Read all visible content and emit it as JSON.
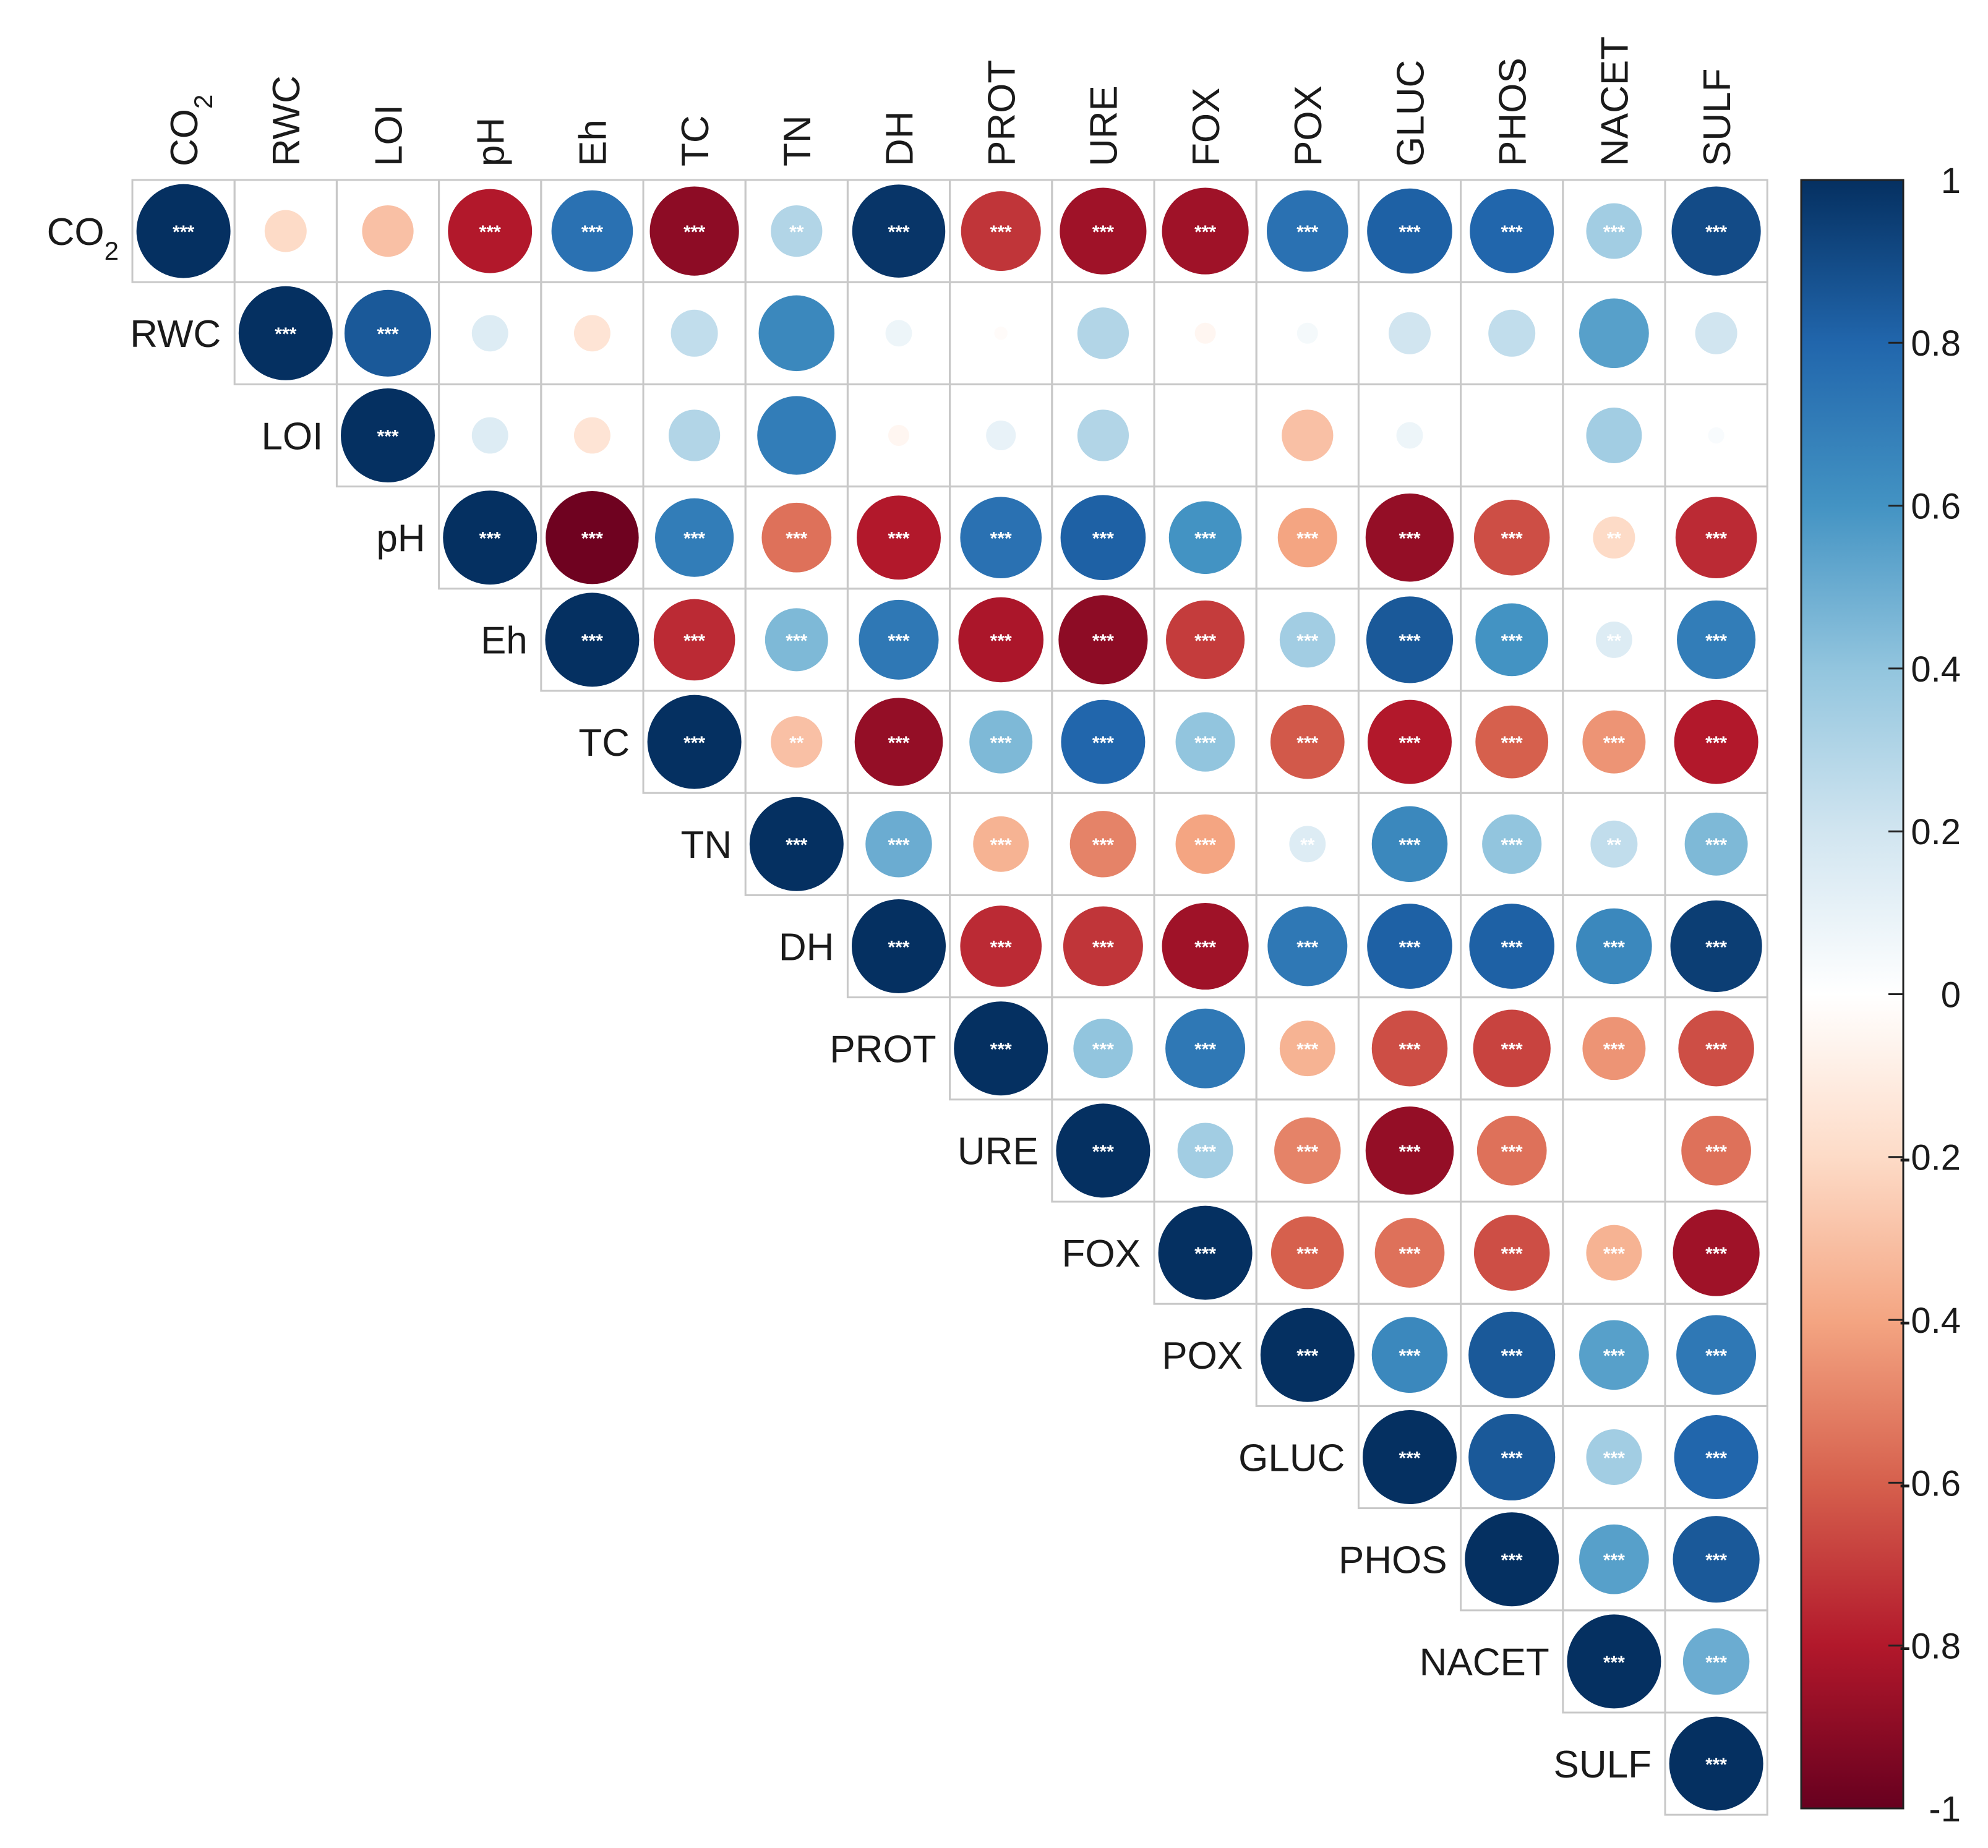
{
  "chart_data": {
    "type": "heatmap",
    "subtype": "correlogram-upper-circles",
    "variables": [
      "CO2",
      "RWC",
      "LOI",
      "pH",
      "Eh",
      "TC",
      "TN",
      "DH",
      "PROT",
      "URE",
      "FOX",
      "POX",
      "GLUC",
      "PHOS",
      "NACET",
      "SULF"
    ],
    "variable_labels": [
      {
        "base": "CO",
        "sub": "2"
      },
      {
        "base": "RWC",
        "sub": ""
      },
      {
        "base": "LOI",
        "sub": ""
      },
      {
        "base": "pH",
        "sub": ""
      },
      {
        "base": "Eh",
        "sub": ""
      },
      {
        "base": "TC",
        "sub": ""
      },
      {
        "base": "TN",
        "sub": ""
      },
      {
        "base": "DH",
        "sub": ""
      },
      {
        "base": "PROT",
        "sub": ""
      },
      {
        "base": "URE",
        "sub": ""
      },
      {
        "base": "FOX",
        "sub": ""
      },
      {
        "base": "POX",
        "sub": ""
      },
      {
        "base": "GLUC",
        "sub": ""
      },
      {
        "base": "PHOS",
        "sub": ""
      },
      {
        "base": "NACET",
        "sub": ""
      },
      {
        "base": "SULF",
        "sub": ""
      }
    ],
    "values": [
      [
        1,
        -0.2,
        -0.3,
        -0.8,
        0.75,
        -0.9,
        0.3,
        0.98,
        -0.72,
        -0.85,
        -0.85,
        0.75,
        0.82,
        0.8,
        0.35,
        0.9
      ],
      [
        null,
        1,
        0.85,
        0.15,
        -0.15,
        0.25,
        0.65,
        0.08,
        -0.02,
        0.3,
        -0.05,
        0.05,
        0.2,
        0.25,
        0.55,
        0.2
      ],
      [
        null,
        null,
        1,
        0.15,
        -0.15,
        0.3,
        0.7,
        -0.05,
        0.1,
        0.3,
        0.0,
        -0.3,
        0.08,
        0.0,
        0.35,
        0.03
      ],
      [
        null,
        null,
        null,
        1,
        -0.98,
        0.7,
        -0.55,
        -0.8,
        0.75,
        0.82,
        0.6,
        -0.4,
        -0.88,
        -0.65,
        -0.2,
        -0.75
      ],
      [
        null,
        null,
        null,
        null,
        1,
        -0.75,
        0.45,
        0.72,
        -0.82,
        -0.9,
        -0.7,
        0.35,
        0.85,
        0.6,
        0.15,
        0.7
      ],
      [
        null,
        null,
        null,
        null,
        null,
        1,
        -0.3,
        -0.88,
        0.45,
        0.8,
        0.4,
        -0.62,
        -0.8,
        -0.6,
        -0.45,
        -0.8
      ],
      [
        null,
        null,
        null,
        null,
        null,
        null,
        1,
        0.5,
        -0.35,
        -0.5,
        -0.4,
        0.15,
        0.65,
        0.4,
        0.25,
        0.45
      ],
      [
        null,
        null,
        null,
        null,
        null,
        null,
        null,
        1,
        -0.75,
        -0.72,
        -0.85,
        0.72,
        0.82,
        0.82,
        0.65,
        0.95
      ],
      [
        null,
        null,
        null,
        null,
        null,
        null,
        null,
        null,
        1,
        0.4,
        0.72,
        -0.35,
        -0.65,
        -0.68,
        -0.45,
        -0.65
      ],
      [
        null,
        null,
        null,
        null,
        null,
        null,
        null,
        null,
        null,
        1,
        0.35,
        -0.5,
        -0.88,
        -0.55,
        0.0,
        -0.55
      ],
      [
        null,
        null,
        null,
        null,
        null,
        null,
        null,
        null,
        null,
        null,
        1,
        -0.6,
        -0.55,
        -0.65,
        -0.35,
        -0.85
      ],
      [
        null,
        null,
        null,
        null,
        null,
        null,
        null,
        null,
        null,
        null,
        null,
        1,
        0.65,
        0.85,
        0.55,
        0.72
      ],
      [
        null,
        null,
        null,
        null,
        null,
        null,
        null,
        null,
        null,
        null,
        null,
        null,
        1,
        0.85,
        0.35,
        0.8
      ],
      [
        null,
        null,
        null,
        null,
        null,
        null,
        null,
        null,
        null,
        null,
        null,
        null,
        null,
        1,
        0.55,
        0.85
      ],
      [
        null,
        null,
        null,
        null,
        null,
        null,
        null,
        null,
        null,
        null,
        null,
        null,
        null,
        null,
        1,
        0.5
      ],
      [
        null,
        null,
        null,
        null,
        null,
        null,
        null,
        null,
        null,
        null,
        null,
        null,
        null,
        null,
        null,
        1
      ]
    ],
    "significance": [
      [
        "***",
        "",
        "",
        "***",
        "***",
        "***",
        "**",
        "***",
        "***",
        "***",
        "***",
        "***",
        "***",
        "***",
        "***",
        "***"
      ],
      [
        "",
        "***",
        "***",
        "",
        "",
        "",
        "",
        "",
        "",
        "",
        "",
        "",
        "",
        "",
        "",
        ""
      ],
      [
        "",
        "",
        "***",
        "",
        "",
        "",
        "",
        "",
        "",
        "",
        "",
        "",
        "",
        "",
        "",
        ""
      ],
      [
        "",
        "",
        "",
        "***",
        "***",
        "***",
        "***",
        "***",
        "***",
        "***",
        "***",
        "***",
        "***",
        "***",
        "**",
        "***"
      ],
      [
        "",
        "",
        "",
        "",
        "***",
        "***",
        "***",
        "***",
        "***",
        "***",
        "***",
        "***",
        "***",
        "***",
        "**",
        "***"
      ],
      [
        "",
        "",
        "",
        "",
        "",
        "***",
        "**",
        "***",
        "***",
        "***",
        "***",
        "***",
        "***",
        "***",
        "***",
        "***"
      ],
      [
        "",
        "",
        "",
        "",
        "",
        "",
        "***",
        "***",
        "***",
        "***",
        "***",
        "**",
        "***",
        "***",
        "**",
        "***"
      ],
      [
        "",
        "",
        "",
        "",
        "",
        "",
        "",
        "***",
        "***",
        "***",
        "***",
        "***",
        "***",
        "***",
        "***",
        "***"
      ],
      [
        "",
        "",
        "",
        "",
        "",
        "",
        "",
        "",
        "***",
        "***",
        "***",
        "***",
        "***",
        "***",
        "***",
        "***"
      ],
      [
        "",
        "",
        "",
        "",
        "",
        "",
        "",
        "",
        "",
        "***",
        "***",
        "***",
        "***",
        "***",
        "",
        "***"
      ],
      [
        "",
        "",
        "",
        "",
        "",
        "",
        "",
        "",
        "",
        "",
        "***",
        "***",
        "***",
        "***",
        "***",
        "***"
      ],
      [
        "",
        "",
        "",
        "",
        "",
        "",
        "",
        "",
        "",
        "",
        "",
        "***",
        "***",
        "***",
        "***",
        "***"
      ],
      [
        "",
        "",
        "",
        "",
        "",
        "",
        "",
        "",
        "",
        "",
        "",
        "",
        "***",
        "***",
        "***",
        "***"
      ],
      [
        "",
        "",
        "",
        "",
        "",
        "",
        "",
        "",
        "",
        "",
        "",
        "",
        "",
        "***",
        "***",
        "***"
      ],
      [
        "",
        "",
        "",
        "",
        "",
        "",
        "",
        "",
        "",
        "",
        "",
        "",
        "",
        "",
        "***",
        "***"
      ],
      [
        "",
        "",
        "",
        "",
        "",
        "",
        "",
        "",
        "",
        "",
        "",
        "",
        "",
        "",
        "",
        "***"
      ]
    ],
    "colorbar": {
      "range": [
        -1,
        1
      ],
      "ticks": [
        "1",
        "0.8",
        "0.6",
        "0.4",
        "0.2",
        "0",
        "-0.2",
        "-0.4",
        "-0.6",
        "-0.8",
        "-1"
      ],
      "tick_values": [
        1,
        0.8,
        0.6,
        0.4,
        0.2,
        0,
        -0.2,
        -0.4,
        -0.6,
        -0.8,
        -1
      ]
    },
    "colors": {
      "stops": [
        "#67001F",
        "#B2182B",
        "#D6604D",
        "#F4A582",
        "#FDDBC7",
        "#FFFFFF",
        "#D1E5F0",
        "#92C5DE",
        "#4393C3",
        "#2166AC",
        "#053061"
      ],
      "grid": "#C8C8C8",
      "label": "#1a1a1a",
      "star": "#ffffff"
    }
  }
}
